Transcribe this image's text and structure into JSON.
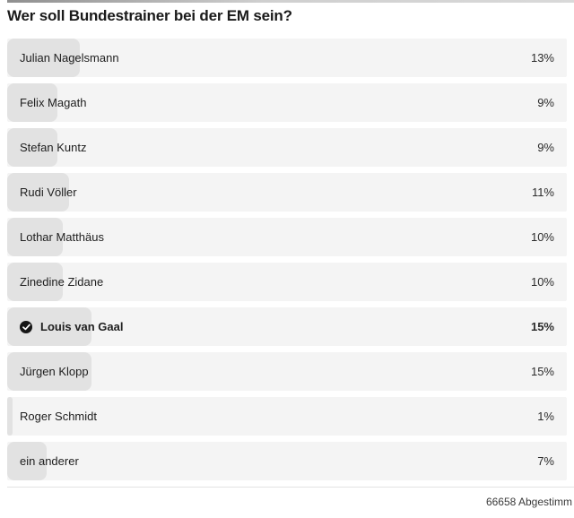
{
  "poll": {
    "question": "Wer soll Bundestrainer bei der EM sein?",
    "options": [
      {
        "label": "Julian Nagelsmann",
        "pct_label": "13%",
        "value": 13,
        "selected": false
      },
      {
        "label": "Felix Magath",
        "pct_label": "9%",
        "value": 9,
        "selected": false
      },
      {
        "label": "Stefan Kuntz",
        "pct_label": "9%",
        "value": 9,
        "selected": false
      },
      {
        "label": "Rudi Völler",
        "pct_label": "11%",
        "value": 11,
        "selected": false
      },
      {
        "label": "Lothar Matthäus",
        "pct_label": "10%",
        "value": 10,
        "selected": false
      },
      {
        "label": "Zinedine Zidane",
        "pct_label": "10%",
        "value": 10,
        "selected": false
      },
      {
        "label": "Louis van Gaal",
        "pct_label": "15%",
        "value": 15,
        "selected": true
      },
      {
        "label": "Jürgen Klopp",
        "pct_label": "15%",
        "value": 15,
        "selected": false
      },
      {
        "label": "Roger Schmidt",
        "pct_label": "1%",
        "value": 1,
        "selected": false
      },
      {
        "label": "ein anderer",
        "pct_label": "7%",
        "value": 7,
        "selected": false
      }
    ],
    "footer": "66658 Abgestimm",
    "icons": {
      "selected": "check-icon"
    },
    "colors": {
      "row_background": "#f4f4f4",
      "bar_fill": "#e2e2e2",
      "selected_badge": "#161616",
      "title_text": "#1a1a1a",
      "divider": "#e3e3e3"
    }
  }
}
